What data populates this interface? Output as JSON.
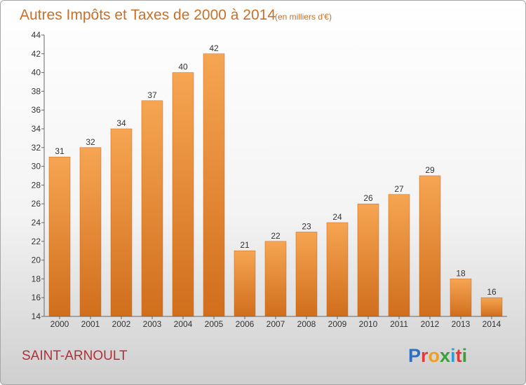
{
  "chart_data": {
    "type": "bar",
    "title": "Autres Impôts et Taxes de 2000 à 2014",
    "subtitle": "(en milliers d'€)",
    "categories": [
      "2000",
      "2001",
      "2002",
      "2003",
      "2004",
      "2005",
      "2006",
      "2007",
      "2008",
      "2009",
      "2010",
      "2011",
      "2012",
      "2013",
      "2014"
    ],
    "values": [
      31,
      32,
      34,
      37,
      40,
      42,
      21,
      22,
      23,
      24,
      26,
      27,
      29,
      18,
      16
    ],
    "xlabel": "",
    "ylabel": "",
    "ylim": [
      14,
      44
    ],
    "yticks": [
      14,
      16,
      18,
      20,
      22,
      24,
      26,
      28,
      30,
      32,
      34,
      36,
      38,
      40,
      42,
      44
    ],
    "grid": false,
    "bar_color": "#e58a30"
  },
  "commune": "SAINT-ARNOULT",
  "logo": {
    "letters": [
      "P",
      "r",
      "o",
      "x",
      "i",
      "t",
      "i"
    ],
    "colors": [
      "#2f6fc1",
      "#e03a3a",
      "#f0a020",
      "#3aa03a",
      "#2f9fd8",
      "#e03a3a",
      "#3aa03a"
    ]
  }
}
